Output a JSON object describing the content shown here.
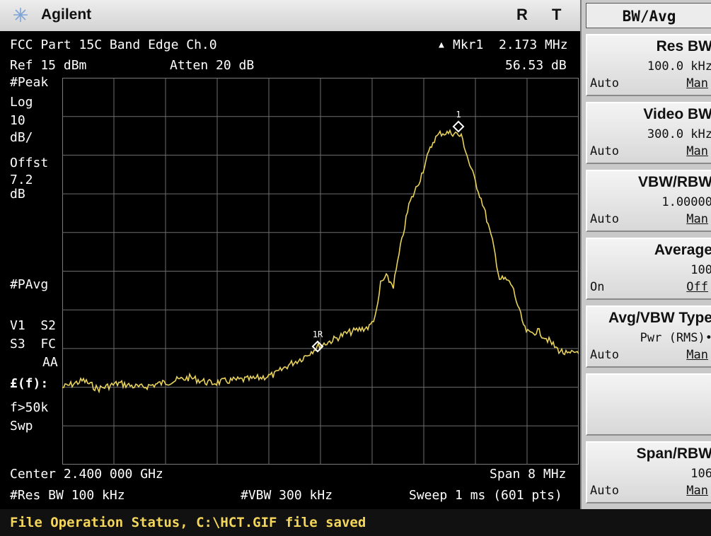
{
  "header": {
    "brand": "Agilent",
    "r_label": "R",
    "t_label": "T"
  },
  "analyzer": {
    "title": "FCC Part 15C Band Edge Ch.0",
    "marker_label": "Mkr1  2.173 MHz",
    "marker_symbol": "▲",
    "ref_level": "Ref 15 dBm",
    "attenuation": "Atten 20 dB",
    "marker_value": "56.53 dB",
    "left_labels": {
      "peak": "#Peak",
      "log": "Log",
      "scale_val": "10",
      "scale_unit": "dB/",
      "offset": "Offst",
      "offset_val": "7.2",
      "offset_unit": "dB",
      "pavg": "#PAvg",
      "v1s2": "V1  S2",
      "s3fc": "S3  FC",
      "aa": "AA",
      "ff": "£(f):",
      "f50k": "f>50k",
      "swp": "Swp"
    },
    "center": "Center 2.400 000 GHz",
    "span": "Span 8 MHz",
    "res_bw": "#Res BW 100 kHz",
    "vbw": "#VBW 300 kHz",
    "sweep": "Sweep 1 ms (601 pts)",
    "markers": {
      "m1": "1",
      "m1r": "1R"
    }
  },
  "status": "File Operation Status, C:\\HCT.GIF file saved",
  "softkeys": {
    "title": "BW/Avg",
    "keys": [
      {
        "label": "Res BW",
        "value": "100.0 kHz",
        "left": "Auto",
        "right": "Man"
      },
      {
        "label": "Video BW",
        "value": "300.0 kHz",
        "left": "Auto",
        "right": "Man"
      },
      {
        "label": "VBW/RBW",
        "value": "1.00000",
        "left": "Auto",
        "right": "Man"
      },
      {
        "label": "Average",
        "value": "100",
        "left": "On",
        "right": "Off"
      },
      {
        "label": "Avg/VBW Type",
        "value": "Pwr (RMS)•",
        "left": "Auto",
        "right": "Man"
      },
      {
        "label": "",
        "value": "",
        "left": "",
        "right": ""
      },
      {
        "label": "Span/RBW",
        "value": "106",
        "left": "Auto",
        "right": "Man"
      }
    ]
  },
  "colors": {
    "trace": "#e8d25a",
    "screen_bg": "#000000",
    "status_text": "#f3d65a"
  }
}
